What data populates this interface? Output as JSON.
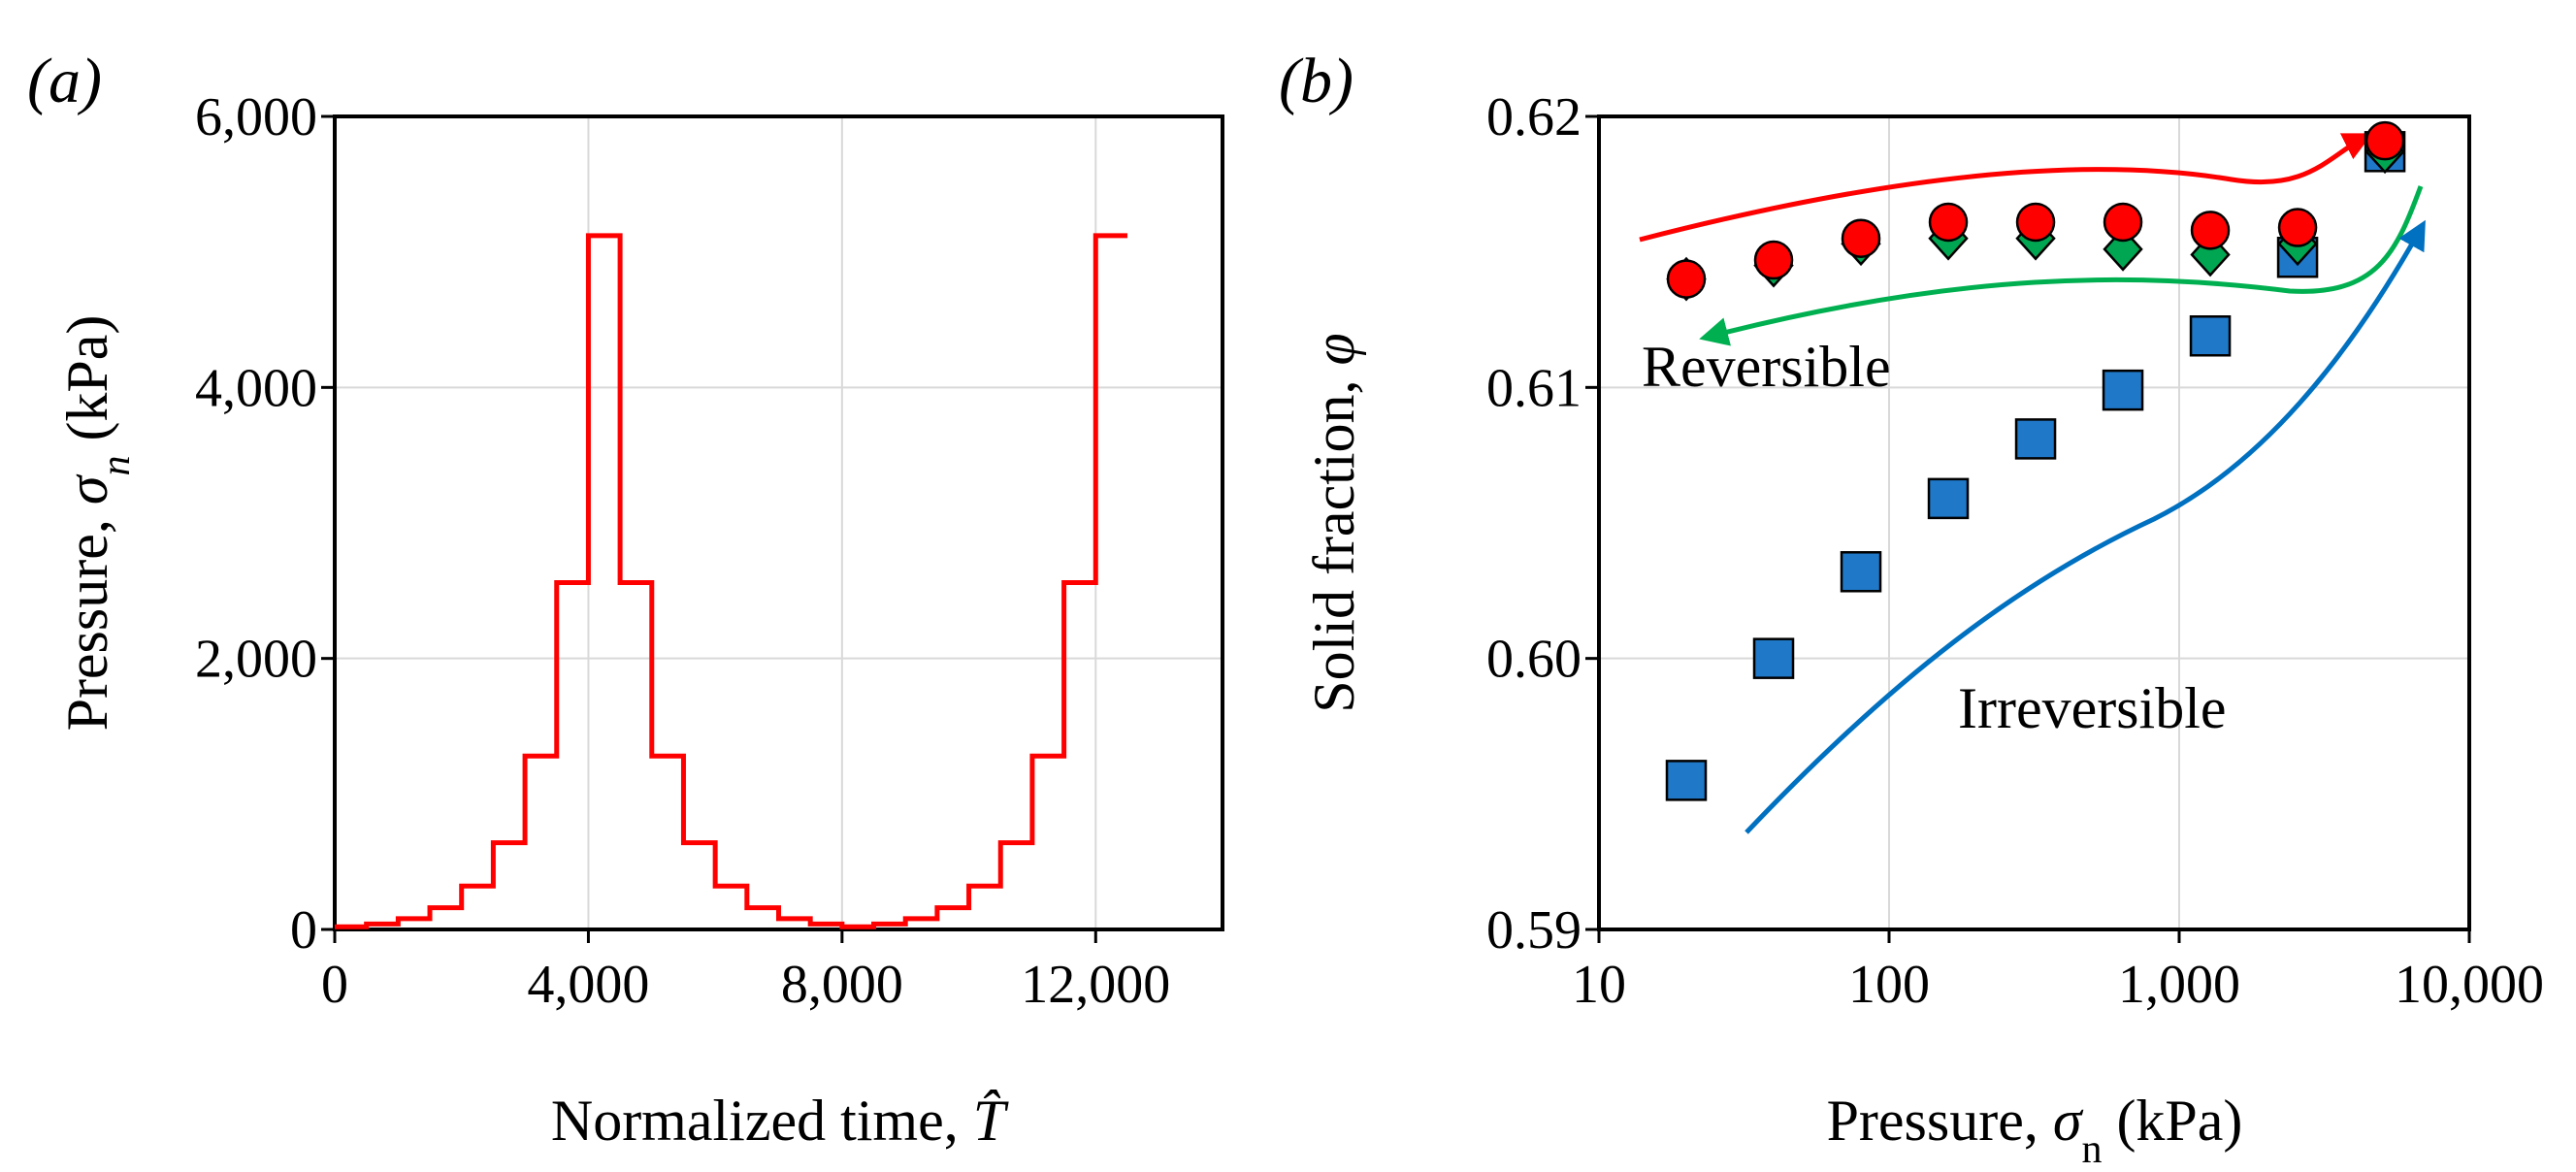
{
  "figure_type": "two-panel chart",
  "colors": {
    "loading_curve": "#ff0000",
    "reversible_arrow_red": "#ff0000",
    "reversible_arrow_green": "#00b050",
    "irreversible_arrow": "#0070c0",
    "square_marker": "#1f78c8",
    "diamond_marker": "#00a651",
    "circle_marker": "#ff0000"
  },
  "chart_data": [
    {
      "panel": "(a)",
      "type": "line",
      "step": true,
      "xlabel_prefix": "Normalized time, ",
      "xlabel_symbol": "T̂",
      "ylabel_prefix": "Pressure, ",
      "ylabel_symbol": "σ",
      "ylabel_sub": "n",
      "ylabel_suffix": " (kPa)",
      "xlim": [
        0,
        14000
      ],
      "ylim": [
        0,
        6000
      ],
      "xticks": [
        0,
        4000,
        8000,
        12000
      ],
      "xtick_labels": [
        "0",
        "4,000",
        "8,000",
        "12,000"
      ],
      "yticks": [
        0,
        2000,
        4000,
        6000
      ],
      "ytick_labels": [
        "0",
        "2,000",
        "4,000",
        "6,000"
      ],
      "grid": true,
      "series": [
        {
          "color": "#ff0000",
          "x": [
            0,
            500,
            1000,
            1500,
            2000,
            2500,
            3000,
            3500,
            4000,
            4500,
            5000,
            5500,
            6000,
            6500,
            7000,
            7500,
            8000,
            8500,
            9000,
            9500,
            10000,
            10500,
            11000,
            11500,
            12000,
            12500
          ],
          "y": [
            20,
            40,
            80,
            160,
            320,
            640,
            1280,
            2560,
            5120,
            2560,
            1280,
            640,
            320,
            160,
            80,
            40,
            20,
            40,
            80,
            160,
            320,
            640,
            1280,
            2560,
            5120,
            5120
          ]
        }
      ]
    },
    {
      "panel": "(b)",
      "type": "scatter",
      "xscale": "log",
      "xlabel_prefix": "Pressure, ",
      "xlabel_symbol": "σ",
      "xlabel_sub": "n",
      "xlabel_suffix": " (kPa)",
      "ylabel_prefix": "Solid fraction, ",
      "ylabel_symbol": "φ",
      "xlim": [
        10,
        10000
      ],
      "ylim": [
        0.59,
        0.62
      ],
      "xticks": [
        10,
        100,
        1000,
        10000
      ],
      "xtick_labels": [
        "10",
        "100",
        "1,000",
        "10,000"
      ],
      "yticks": [
        0.59,
        0.6,
        0.61,
        0.62
      ],
      "ytick_labels": [
        "0.59",
        "0.60",
        "0.61",
        "0.62"
      ],
      "grid": true,
      "annotations": [
        "Reversible",
        "Irreversible"
      ],
      "series": [
        {
          "marker": "square",
          "color": "#1f78c8",
          "x": [
            20,
            40,
            80,
            160,
            320,
            640,
            1280,
            2560,
            5120
          ],
          "y": [
            0.5955,
            0.6,
            0.6032,
            0.6059,
            0.6081,
            0.6099,
            0.6119,
            0.6148,
            0.6187
          ]
        },
        {
          "marker": "diamond",
          "color": "#00a651",
          "x": [
            20,
            40,
            80,
            160,
            320,
            640,
            1280,
            2560,
            5120
          ],
          "y": [
            0.614,
            0.6145,
            0.6153,
            0.6155,
            0.6155,
            0.6151,
            0.6149,
            0.6153,
            0.6187
          ]
        },
        {
          "marker": "circle",
          "color": "#ff0000",
          "x": [
            20,
            40,
            80,
            160,
            320,
            640,
            1280,
            2560,
            5120
          ],
          "y": [
            0.614,
            0.6147,
            0.6155,
            0.6161,
            0.6161,
            0.6161,
            0.6158,
            0.6159,
            0.6191
          ]
        }
      ]
    }
  ]
}
